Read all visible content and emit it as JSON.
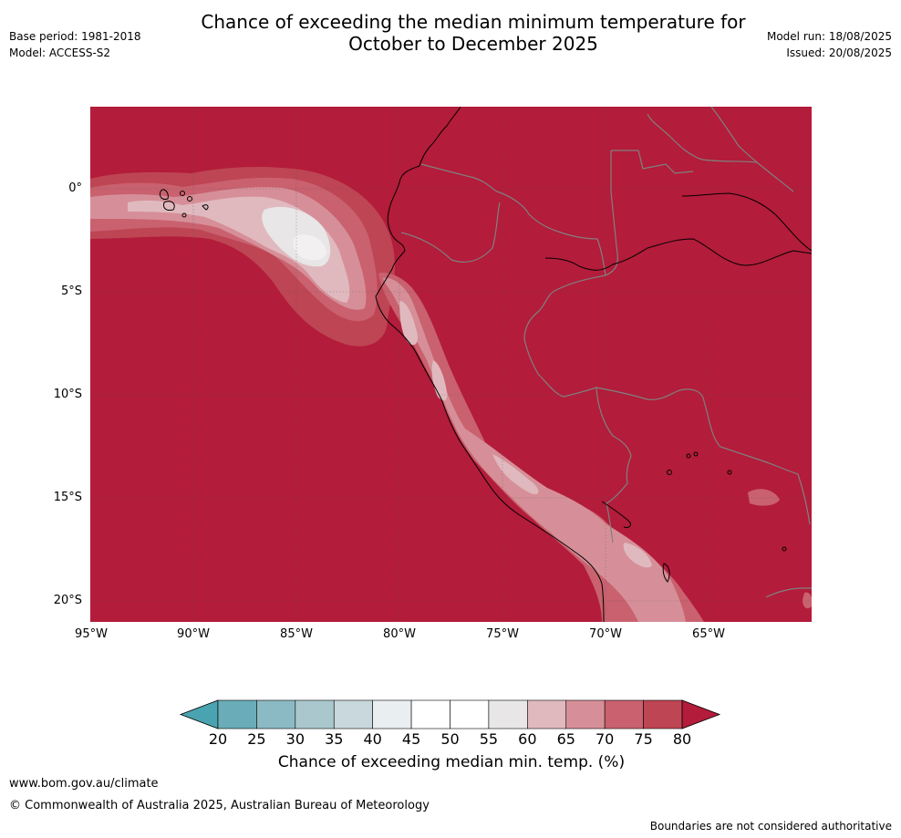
{
  "header": {
    "title_line1": "Chance of exceeding the median minimum temperature for",
    "title_line2": "October to December 2025",
    "base_period": "Base period: 1981-2018",
    "model": "Model: ACCESS-S2",
    "model_run": "Model run: 18/08/2025",
    "issued": "Issued: 20/08/2025"
  },
  "map": {
    "lat_labels": [
      "0°",
      "5°S",
      "10°S",
      "15°S",
      "20°S"
    ],
    "lon_labels": [
      "95°W",
      "90°W",
      "85°W",
      "80°W",
      "75°W",
      "70°W",
      "65°W"
    ],
    "background_color": "#b31c3a",
    "coastline_color": "#000000",
    "boundary_color": "#808080"
  },
  "colorbar": {
    "title": "Chance of exceeding median min. temp. (%)",
    "ticks": [
      "20",
      "25",
      "30",
      "35",
      "40",
      "45",
      "50",
      "55",
      "60",
      "65",
      "70",
      "75",
      "80"
    ],
    "colors": [
      "#4aa3b0",
      "#6aacb8",
      "#8bbac4",
      "#a9c7cd",
      "#c8d8dc",
      "#e9eef0",
      "#ffffff",
      "#ffffff",
      "#e8e6e6",
      "#e0b9bf",
      "#d68f98",
      "#c9616f",
      "#be4553",
      "#b31c3a"
    ]
  },
  "footer": {
    "website": "www.bom.gov.au/climate",
    "copyright": "© Commonwealth of Australia 2025, Australian Bureau of Meteorology",
    "disclaimer": "Boundaries are not considered authoritative"
  }
}
